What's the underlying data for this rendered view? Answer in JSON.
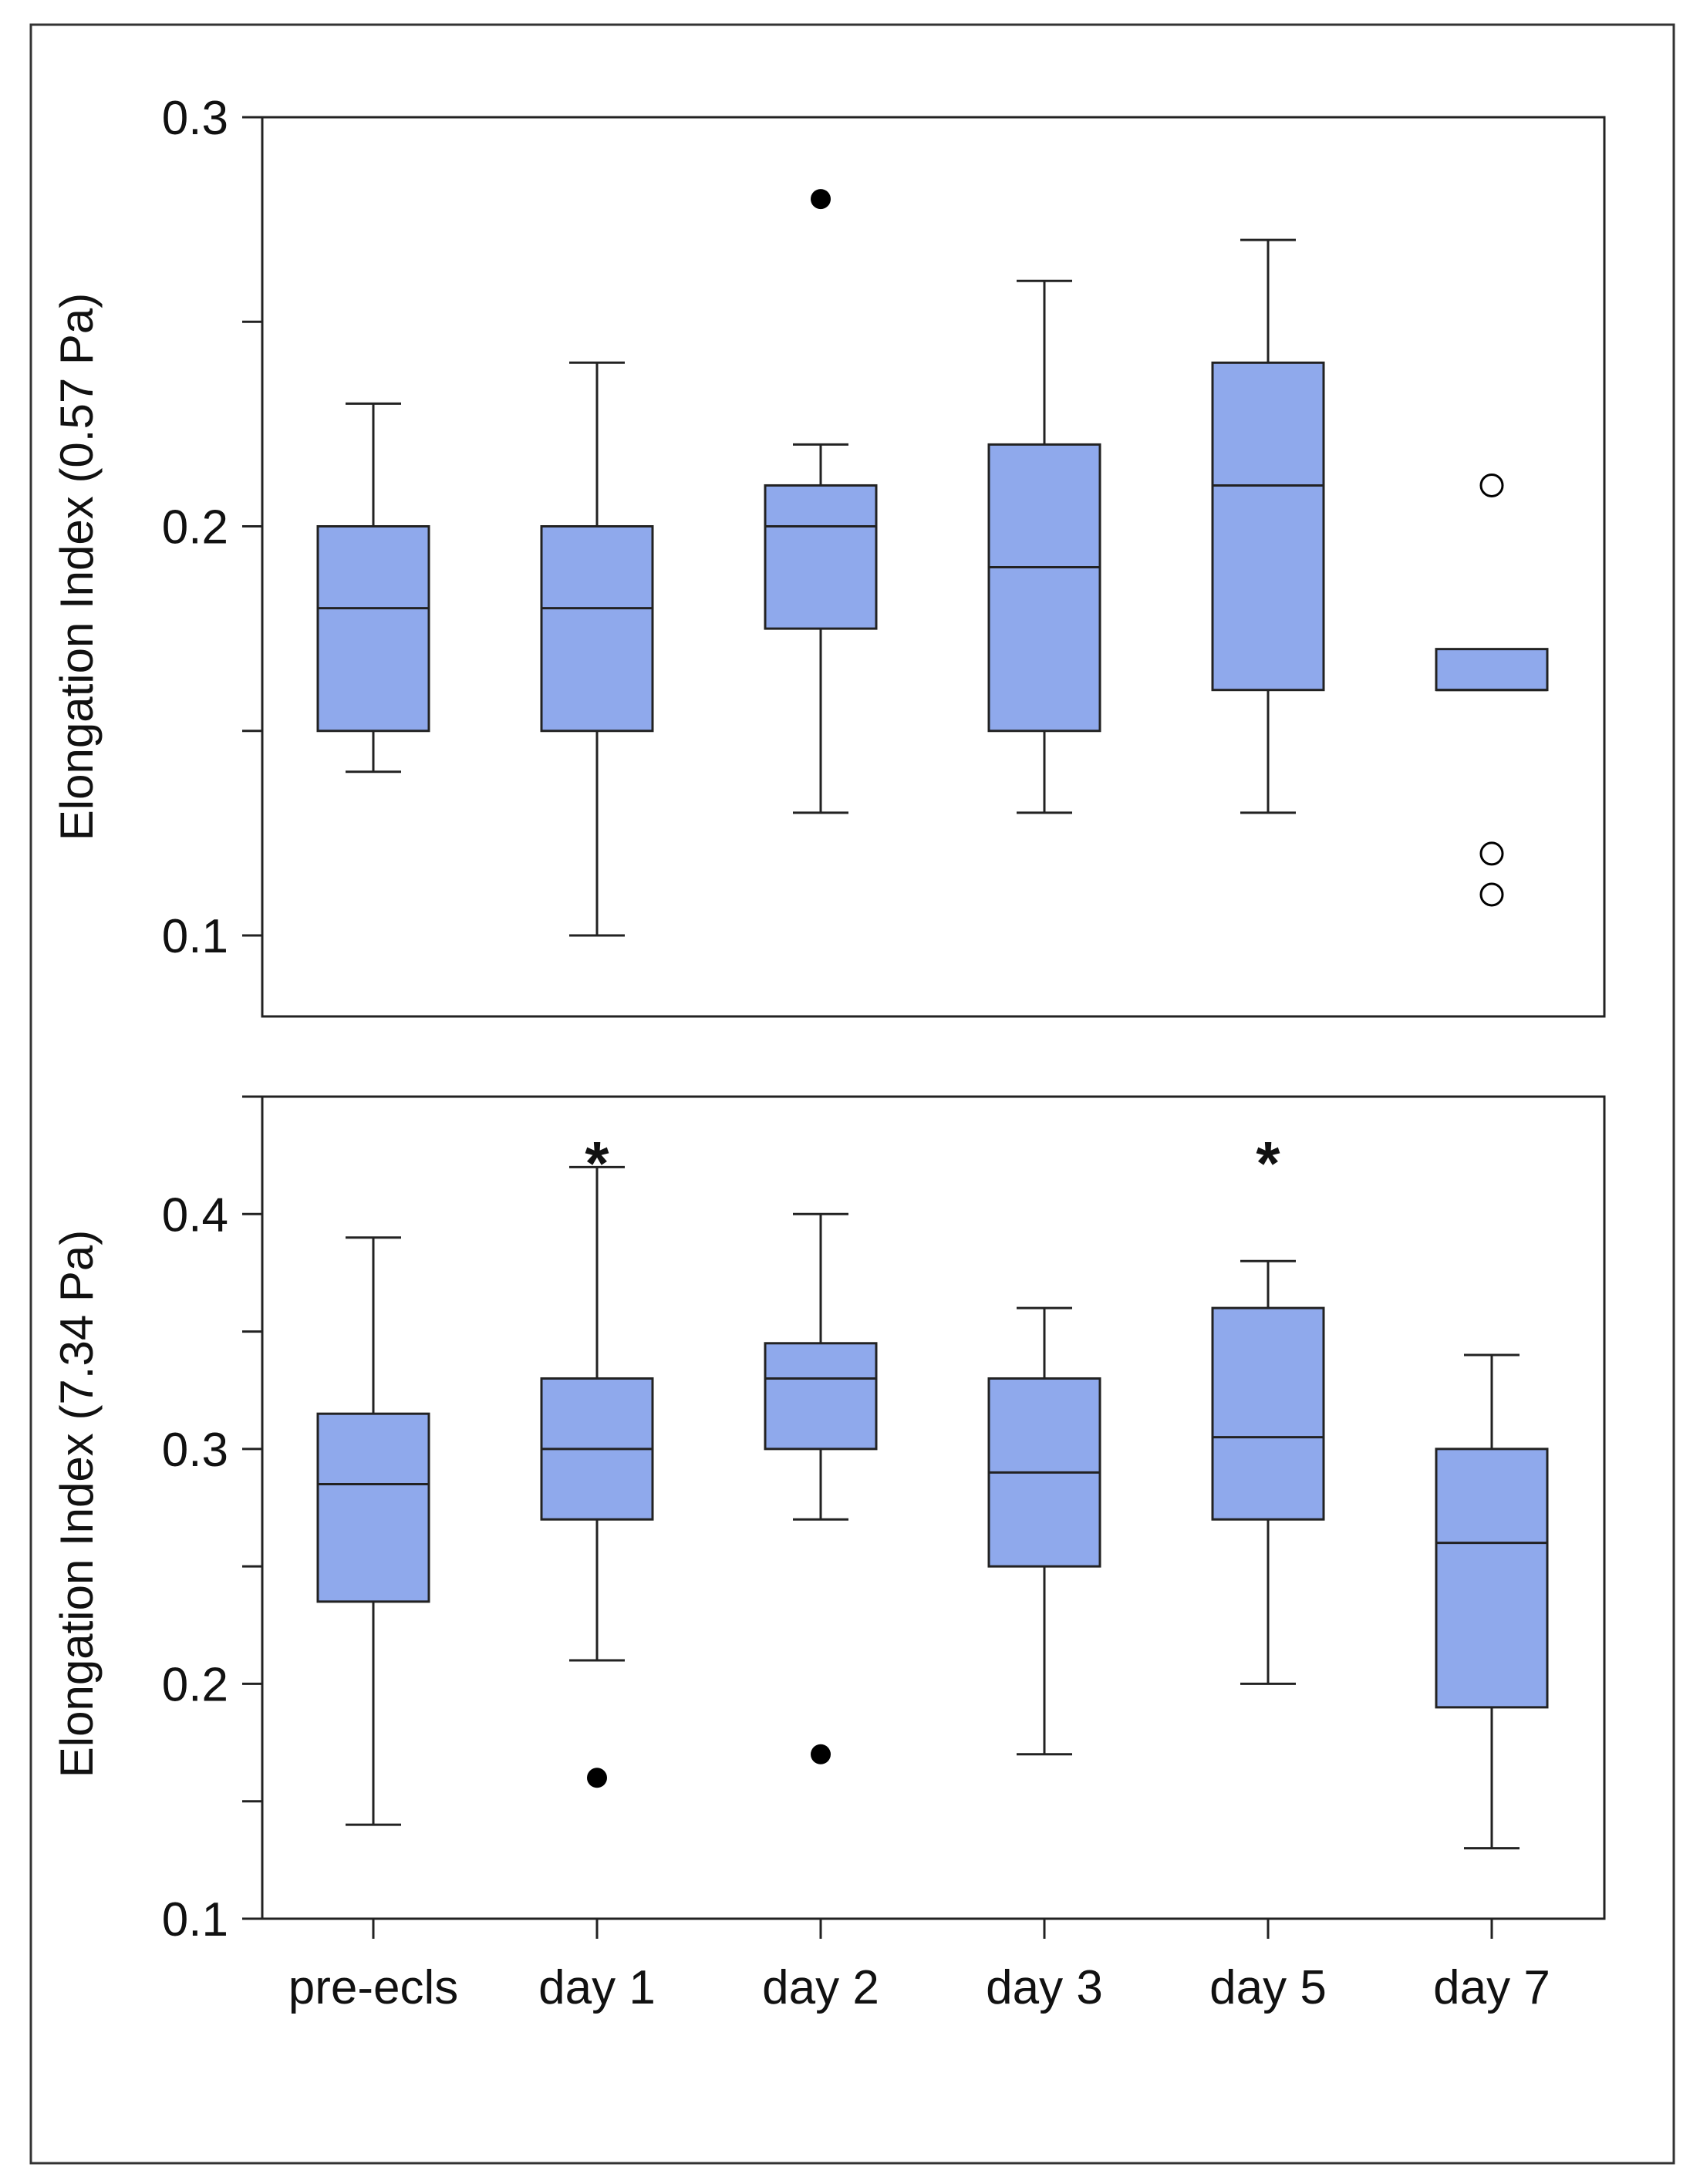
{
  "chart_data": [
    {
      "type": "boxplot",
      "ylabel": "Elongation Index (0.57 Pa)",
      "ylim": [
        0.08,
        0.3
      ],
      "yticks": [
        0.1,
        0.15,
        0.2,
        0.25,
        0.3
      ],
      "ytick_labels": [
        "0.1",
        "",
        "0.2",
        "",
        "0.3"
      ],
      "categories": [
        "pre-ecls",
        "day 1",
        "day 2",
        "day 3",
        "day 5",
        "day 7"
      ],
      "boxes": [
        {
          "whisker_low": 0.14,
          "q1": 0.15,
          "median": 0.18,
          "q3": 0.2,
          "whisker_high": 0.23,
          "outliers": []
        },
        {
          "whisker_low": 0.1,
          "q1": 0.15,
          "median": 0.18,
          "q3": 0.2,
          "whisker_high": 0.24,
          "outliers": []
        },
        {
          "whisker_low": 0.13,
          "q1": 0.175,
          "median": 0.2,
          "q3": 0.21,
          "whisker_high": 0.22,
          "outliers": [
            {
              "value": 0.28,
              "style": "filled"
            }
          ]
        },
        {
          "whisker_low": 0.13,
          "q1": 0.15,
          "median": 0.19,
          "q3": 0.22,
          "whisker_high": 0.26,
          "outliers": []
        },
        {
          "whisker_low": 0.13,
          "q1": 0.16,
          "median": 0.21,
          "q3": 0.24,
          "whisker_high": 0.27,
          "outliers": []
        },
        {
          "whisker_low": null,
          "q1": 0.16,
          "median": 0.16,
          "q3": 0.17,
          "whisker_high": null,
          "outliers": [
            {
              "value": 0.21,
              "style": "open"
            },
            {
              "value": 0.12,
              "style": "open"
            },
            {
              "value": 0.11,
              "style": "open"
            }
          ]
        }
      ],
      "annotations": []
    },
    {
      "type": "boxplot",
      "ylabel": "Elongation Index (7.34 Pa)",
      "ylim": [
        0.1,
        0.45
      ],
      "yticks": [
        0.1,
        0.15,
        0.2,
        0.25,
        0.3,
        0.35,
        0.4,
        0.45
      ],
      "ytick_labels": [
        "0.1",
        "",
        "0.2",
        "",
        "0.3",
        "",
        "0.4",
        ""
      ],
      "categories": [
        "pre-ecls",
        "day 1",
        "day 2",
        "day 3",
        "day 5",
        "day 7"
      ],
      "boxes": [
        {
          "whisker_low": 0.14,
          "q1": 0.235,
          "median": 0.285,
          "q3": 0.315,
          "whisker_high": 0.39,
          "outliers": []
        },
        {
          "whisker_low": 0.21,
          "q1": 0.27,
          "median": 0.3,
          "q3": 0.33,
          "whisker_high": 0.42,
          "outliers": [
            {
              "value": 0.16,
              "style": "filled"
            }
          ]
        },
        {
          "whisker_low": 0.27,
          "q1": 0.3,
          "median": 0.33,
          "q3": 0.345,
          "whisker_high": 0.4,
          "outliers": [
            {
              "value": 0.17,
              "style": "filled"
            }
          ]
        },
        {
          "whisker_low": 0.17,
          "q1": 0.25,
          "median": 0.29,
          "q3": 0.33,
          "whisker_high": 0.36,
          "outliers": []
        },
        {
          "whisker_low": 0.2,
          "q1": 0.27,
          "median": 0.305,
          "q3": 0.36,
          "whisker_high": 0.38,
          "outliers": []
        },
        {
          "whisker_low": 0.13,
          "q1": 0.19,
          "median": 0.26,
          "q3": 0.3,
          "whisker_high": 0.34,
          "outliers": []
        }
      ],
      "annotations": [
        {
          "category": "day 1",
          "text": "*",
          "value": 0.425
        },
        {
          "category": "day 5",
          "text": "*",
          "value": 0.425
        }
      ]
    }
  ]
}
